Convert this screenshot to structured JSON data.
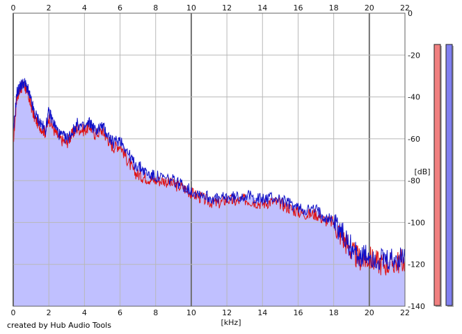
{
  "credit": "created by Hub Audio Tools",
  "chart_data": {
    "type": "line",
    "xlabel": "[kHz]",
    "ylabel": "[dB]",
    "xlim": [
      0,
      22
    ],
    "ylim": [
      -140,
      0
    ],
    "x_ticks": [
      0,
      2,
      4,
      6,
      8,
      10,
      12,
      14,
      16,
      18,
      20,
      22
    ],
    "y_ticks": [
      0,
      -20,
      -40,
      -60,
      -80,
      -100,
      -120,
      -140
    ],
    "y_tick_labels": [
      "0",
      "-20",
      "-40",
      "-60",
      "-80",
      "-100",
      "-120",
      "-140"
    ],
    "grid": true,
    "colors": {
      "red": "#e01010",
      "blue": "#1010c8",
      "fill": "#c0c0ff"
    },
    "series": [
      {
        "color": "red",
        "x": [
          0,
          0.2,
          0.4,
          0.6,
          0.8,
          1.0,
          1.2,
          1.5,
          1.8,
          2.0,
          2.3,
          2.6,
          3.0,
          3.3,
          3.6,
          4.0,
          4.3,
          4.6,
          5.0,
          5.3,
          5.6,
          6.0,
          6.4,
          6.8,
          7.2,
          7.6,
          8.0,
          8.5,
          9.0,
          9.5,
          10.0,
          10.5,
          11.0,
          11.5,
          12.0,
          12.5,
          13.0,
          13.5,
          14.0,
          14.5,
          15.0,
          15.5,
          16.0,
          16.5,
          17.0,
          17.5,
          18.0,
          18.4,
          18.8,
          19.2,
          19.6,
          20.0,
          20.5,
          21.0,
          21.5,
          22.0
        ],
        "y": [
          -62,
          -40,
          -36,
          -34,
          -38,
          -44,
          -50,
          -54,
          -57,
          -50,
          -56,
          -60,
          -62,
          -58,
          -55,
          -56,
          -54,
          -58,
          -56,
          -60,
          -64,
          -63,
          -70,
          -76,
          -78,
          -79,
          -80,
          -80,
          -82,
          -83,
          -86,
          -88,
          -90,
          -91,
          -89,
          -90,
          -89,
          -90,
          -91,
          -90,
          -91,
          -93,
          -95,
          -96,
          -96,
          -99,
          -100,
          -106,
          -111,
          -116,
          -118,
          -117,
          -119,
          -120,
          -119,
          -118
        ]
      },
      {
        "color": "blue",
        "x": [
          0,
          0.2,
          0.4,
          0.6,
          0.8,
          1.0,
          1.2,
          1.5,
          1.8,
          2.0,
          2.3,
          2.6,
          3.0,
          3.3,
          3.6,
          4.0,
          4.3,
          4.6,
          5.0,
          5.3,
          5.6,
          6.0,
          6.4,
          6.8,
          7.2,
          7.6,
          8.0,
          8.5,
          9.0,
          9.5,
          10.0,
          10.5,
          11.0,
          11.5,
          12.0,
          12.5,
          13.0,
          13.5,
          14.0,
          14.5,
          15.0,
          15.5,
          16.0,
          16.5,
          17.0,
          17.5,
          18.0,
          18.4,
          18.8,
          19.2,
          19.6,
          20.0,
          20.5,
          21.0,
          21.5,
          22.0
        ],
        "y": [
          -58,
          -38,
          -35,
          -33,
          -36,
          -42,
          -48,
          -52,
          -56,
          -47,
          -53,
          -58,
          -60,
          -57,
          -53,
          -55,
          -52,
          -56,
          -54,
          -58,
          -62,
          -60,
          -66,
          -72,
          -74,
          -77,
          -78,
          -79,
          -80,
          -82,
          -85,
          -86,
          -88,
          -89,
          -88,
          -88,
          -87,
          -88,
          -89,
          -88,
          -89,
          -91,
          -93,
          -94,
          -94,
          -97,
          -99,
          -104,
          -110,
          -114,
          -117,
          -116,
          -118,
          -119,
          -118,
          -117
        ]
      }
    ]
  },
  "level_meters": [
    {
      "color": "red",
      "fill_fraction": 0.88
    },
    {
      "color": "blue",
      "fill_fraction": 0.88
    }
  ]
}
